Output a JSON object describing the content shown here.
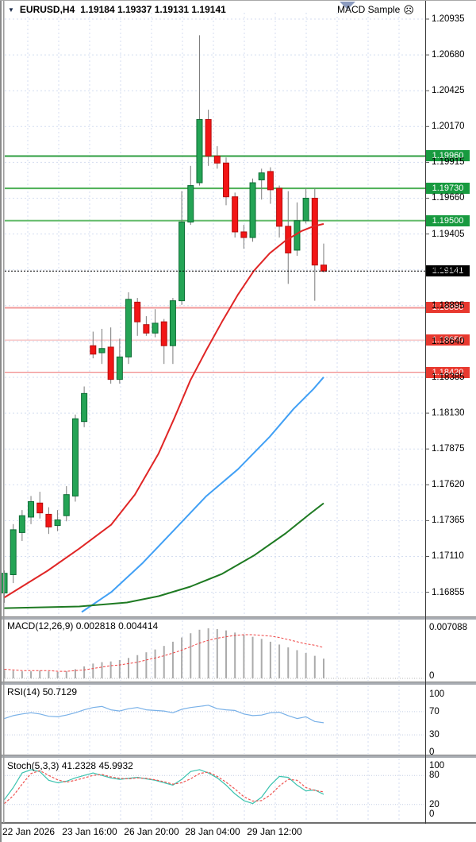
{
  "header": {
    "collapse_icon_glyph": "▼",
    "symbol_period": "EURUSD,H4",
    "ohlc_text": "1.19184 1.19337 1.19131 1.19141",
    "open": "1.19184",
    "high": "1.19337",
    "low": "1.19131",
    "close": "1.19141",
    "indicator_label": "MACD Sample",
    "indicator_icon": "sad-face-icon",
    "indicator_icon_glyph": "☹"
  },
  "price_axis": {
    "labels": [
      "1.20935",
      "1.20680",
      "1.20425",
      "1.20170",
      "1.19915",
      "1.19660",
      "1.19405",
      "1.19150",
      "1.18895",
      "1.18640",
      "1.18385",
      "1.18130",
      "1.17875",
      "1.17620",
      "1.17365",
      "1.17110",
      "1.16855"
    ]
  },
  "levels": {
    "resistance": [
      {
        "label": "1.19960",
        "price": 1.1996,
        "color": "#2e9e40",
        "width": 2,
        "badge": "#179a3f"
      },
      {
        "label": "1.19730",
        "price": 1.1973,
        "color": "#4db056",
        "width": 2,
        "badge": "#179a3f"
      },
      {
        "label": "1.19500",
        "price": 1.195,
        "color": "#63bb6a",
        "width": 2,
        "badge": "#179a3f"
      }
    ],
    "support": [
      {
        "label": "1.18880",
        "price": 1.1888,
        "color": "#f19898",
        "width": 2,
        "badge": "#e8392f"
      },
      {
        "label": "1.18650",
        "price": 1.1865,
        "color": "#f4abab",
        "width": 1,
        "badge": "#e8392f"
      },
      {
        "label": "1.18420",
        "price": 1.1842,
        "color": "#ee6a6a",
        "width": 1,
        "badge": "#e8392f"
      }
    ],
    "current": {
      "label": "1.19141",
      "price": 1.19141,
      "badge": "#000000"
    }
  },
  "chart_data": {
    "type": "candlestick",
    "title": "EURUSD,H4",
    "y_range": [
      1.16855,
      1.20935
    ],
    "x_axis_labels": [
      "22 Jan 2026",
      "23 Jan 16:00",
      "26 Jan 20:00",
      "28 Jan 04:00",
      "29 Jan 12:00"
    ],
    "bull_color": "#24a455",
    "bear_color": "#f21616",
    "wick_color": "#7a7a7a",
    "candles": [
      [
        1.1685,
        1.1701,
        1.1678,
        1.1699
      ],
      [
        1.1698,
        1.1734,
        1.1692,
        1.173
      ],
      [
        1.1728,
        1.1744,
        1.1722,
        1.174
      ],
      [
        1.1739,
        1.1754,
        1.1734,
        1.175
      ],
      [
        1.1749,
        1.1757,
        1.1738,
        1.1742
      ],
      [
        1.1741,
        1.1746,
        1.1727,
        1.1732
      ],
      [
        1.1733,
        1.1744,
        1.1729,
        1.1737
      ],
      [
        1.174,
        1.1761,
        1.1736,
        1.1755
      ],
      [
        1.1754,
        1.1812,
        1.175,
        1.1809
      ],
      [
        1.1807,
        1.1832,
        1.1803,
        1.1827
      ],
      [
        1.1861,
        1.1871,
        1.1852,
        1.1855
      ],
      [
        1.1856,
        1.1873,
        1.1848,
        1.1859
      ],
      [
        1.186,
        1.1874,
        1.1834,
        1.1837
      ],
      [
        1.1837,
        1.1866,
        1.1834,
        1.1853
      ],
      [
        1.1853,
        1.1899,
        1.1848,
        1.1894
      ],
      [
        1.1892,
        1.1895,
        1.1868,
        1.1878
      ],
      [
        1.1876,
        1.1882,
        1.1868,
        1.187
      ],
      [
        1.187,
        1.1887,
        1.1867,
        1.1877
      ],
      [
        1.1878,
        1.188,
        1.1848,
        1.1861
      ],
      [
        1.1861,
        1.1895,
        1.1848,
        1.1893
      ],
      [
        1.1893,
        1.1971,
        1.189,
        1.1949
      ],
      [
        1.1949,
        1.1989,
        1.1947,
        1.1975
      ],
      [
        1.1977,
        1.2082,
        1.1975,
        1.2022
      ],
      [
        1.2022,
        1.2029,
        1.1989,
        1.1996
      ],
      [
        1.1996,
        1.2003,
        1.1987,
        1.1991
      ],
      [
        1.1991,
        1.1995,
        1.1961,
        1.1967
      ],
      [
        1.1967,
        1.197,
        1.1938,
        1.1942
      ],
      [
        1.1942,
        1.1947,
        1.193,
        1.1938
      ],
      [
        1.1938,
        1.198,
        1.1935,
        1.1977
      ],
      [
        1.1979,
        1.1987,
        1.1965,
        1.1984
      ],
      [
        1.1985,
        1.1988,
        1.1962,
        1.1972
      ],
      [
        1.1973,
        1.1975,
        1.1938,
        1.1946
      ],
      [
        1.1946,
        1.1971,
        1.1905,
        1.1927
      ],
      [
        1.1929,
        1.1963,
        1.1925,
        1.195
      ],
      [
        1.195,
        1.1973,
        1.1948,
        1.1966
      ],
      [
        1.1966,
        1.1973,
        1.1893,
        1.19184
      ],
      [
        1.19184,
        1.19337,
        1.19131,
        1.19141
      ]
    ],
    "moving_averages": [
      {
        "name": "ma-fast-red",
        "color": "#e02626",
        "points": [
          [
            5,
            1.16816
          ],
          [
            60,
            1.17008
          ],
          [
            100,
            1.17166
          ],
          [
            140,
            1.17335
          ],
          [
            170,
            1.1755
          ],
          [
            200,
            1.17844
          ],
          [
            220,
            1.18098
          ],
          [
            240,
            1.18364
          ],
          [
            260,
            1.18578
          ],
          [
            280,
            1.18782
          ],
          [
            300,
            1.18974
          ],
          [
            320,
            1.19143
          ],
          [
            340,
            1.19268
          ],
          [
            360,
            1.19358
          ],
          [
            380,
            1.19426
          ],
          [
            395,
            1.1946
          ],
          [
            408,
            1.19477
          ]
        ]
      },
      {
        "name": "ma-mid-blue",
        "color": "#41a0f5",
        "points": [
          [
            103,
            1.16714
          ],
          [
            140,
            1.16855
          ],
          [
            180,
            1.17064
          ],
          [
            220,
            1.17301
          ],
          [
            260,
            1.17539
          ],
          [
            300,
            1.17731
          ],
          [
            340,
            1.17962
          ],
          [
            370,
            1.1816
          ],
          [
            395,
            1.18301
          ],
          [
            408,
            1.18386
          ]
        ]
      },
      {
        "name": "ma-slow-green",
        "color": "#1e7a22",
        "points": [
          [
            5,
            1.16742
          ],
          [
            100,
            1.16754
          ],
          [
            160,
            1.16782
          ],
          [
            200,
            1.16827
          ],
          [
            240,
            1.16895
          ],
          [
            280,
            1.16986
          ],
          [
            320,
            1.17116
          ],
          [
            360,
            1.17274
          ],
          [
            390,
            1.1741
          ],
          [
            408,
            1.17489
          ]
        ]
      }
    ],
    "indicators": {
      "macd": {
        "histogram": [
          0.0012,
          0.0011,
          0.001,
          0.001,
          0.0011,
          0.001,
          0.0009,
          0.001,
          0.0013,
          0.0017,
          0.0021,
          0.0023,
          0.0024,
          0.0026,
          0.0029,
          0.0033,
          0.0037,
          0.0041,
          0.0046,
          0.0052,
          0.0058,
          0.0064,
          0.0069,
          0.0071,
          0.007,
          0.0068,
          0.0065,
          0.0062,
          0.0059,
          0.0056,
          0.0052,
          0.0048,
          0.0044,
          0.004,
          0.0036,
          0.0032,
          0.0028
        ],
        "signal": [
          0.0013,
          0.0012,
          0.0011,
          0.0011,
          0.0011,
          0.0011,
          0.001,
          0.001,
          0.0011,
          0.0012,
          0.0014,
          0.0016,
          0.0018,
          0.0019,
          0.0021,
          0.0023,
          0.0026,
          0.0029,
          0.0032,
          0.0036,
          0.004,
          0.0045,
          0.005,
          0.0054,
          0.0057,
          0.0059,
          0.0061,
          0.0062,
          0.0062,
          0.0061,
          0.006,
          0.0058,
          0.0055,
          0.0052,
          0.0049,
          0.0047,
          0.0044
        ],
        "scale_max": 0.007088
      },
      "rsi": {
        "values": [
          58,
          63,
          66,
          68,
          66,
          62,
          61,
          64,
          68,
          73,
          77,
          79,
          73,
          71,
          75,
          77,
          73,
          72,
          71,
          68,
          74,
          77,
          79,
          81,
          75,
          73,
          72,
          66,
          63,
          64,
          68,
          69,
          63,
          58,
          61,
          53,
          50.7
        ],
        "levels": [
          70,
          30
        ]
      },
      "stoch": {
        "k": [
          30,
          55,
          85,
          92,
          88,
          70,
          65,
          68,
          75,
          80,
          85,
          80,
          75,
          72,
          74,
          76,
          73,
          70,
          65,
          60,
          72,
          88,
          92,
          85,
          75,
          60,
          42,
          28,
          22,
          35,
          60,
          78,
          76,
          60,
          48,
          50,
          41.2
        ],
        "d": [
          22,
          38,
          62,
          84,
          90,
          80,
          71,
          66,
          70,
          75,
          80,
          82,
          77,
          74,
          73,
          75,
          74,
          71,
          67,
          62,
          65,
          73,
          84,
          87,
          78,
          66,
          52,
          36,
          27,
          28,
          40,
          58,
          72,
          70,
          55,
          49,
          46.0
        ],
        "levels": [
          80,
          20
        ]
      }
    }
  },
  "macd_panel": {
    "name": "MACD(12,26,9)",
    "value_1": "0.002818",
    "value_2": "0.004414",
    "axis_labels": [
      "0.007088",
      "0"
    ]
  },
  "rsi_panel": {
    "name": "RSI(14)",
    "value_1": "50.7129",
    "axis_labels": [
      "100",
      "70",
      "30",
      "0"
    ]
  },
  "stoch_panel": {
    "name": "Stoch(5,3,3)",
    "value_1": "41.2328",
    "value_2": "45.9932",
    "axis_labels": [
      "100",
      "80",
      "20",
      "0"
    ]
  },
  "time_axis": {
    "labels": [
      "22 Jan 2026",
      "23 Jan 16:00",
      "26 Jan 20:00",
      "28 Jan 04:00",
      "29 Jan 12:00"
    ]
  }
}
